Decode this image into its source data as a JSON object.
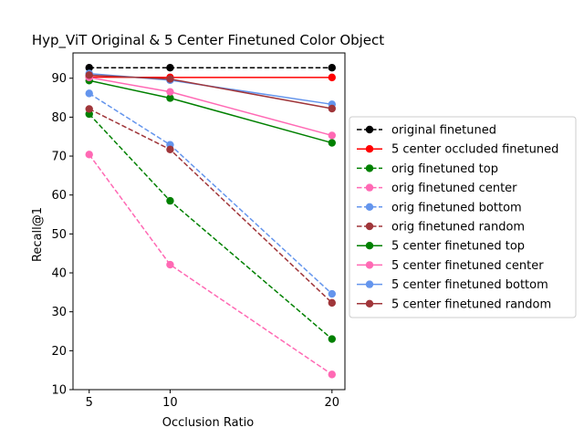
{
  "chart_data": {
    "type": "line",
    "title": "Hyp_ViT Original & 5 Center Finetuned Color Object",
    "xlabel": "Occlusion Ratio",
    "ylabel": "Recall@1",
    "x": [
      5,
      10,
      20
    ],
    "xlim": [
      4,
      20.8
    ],
    "ylim": [
      10,
      96.5
    ],
    "xticks": [
      "5",
      "10",
      "20"
    ],
    "yticks": [
      10,
      20,
      30,
      40,
      50,
      60,
      70,
      80,
      90
    ],
    "grid": false,
    "legend_position": "right",
    "series": [
      {
        "name": "original finetuned",
        "values": [
          92.7,
          92.7,
          92.7
        ],
        "color": "#000000",
        "dashed": true
      },
      {
        "name": "5 center occluded finetuned",
        "values": [
          90.3,
          90.2,
          90.2
        ],
        "color": "#ff0000",
        "dashed": false
      },
      {
        "name": "orig finetuned top",
        "values": [
          80.8,
          58.5,
          23.0
        ],
        "color": "#008000",
        "dashed": true
      },
      {
        "name": "orig finetuned center",
        "values": [
          70.4,
          42.1,
          13.9
        ],
        "color": "#ff69b4",
        "dashed": true
      },
      {
        "name": "orig finetuned bottom",
        "values": [
          86.1,
          72.9,
          34.6
        ],
        "color": "#6495ed",
        "dashed": true
      },
      {
        "name": "orig finetuned random",
        "values": [
          82.1,
          71.7,
          32.3
        ],
        "color": "#a0363a",
        "dashed": true
      },
      {
        "name": "5 center finetuned top",
        "values": [
          89.4,
          84.9,
          73.4
        ],
        "color": "#008000",
        "dashed": false
      },
      {
        "name": "5 center finetuned center",
        "values": [
          90.2,
          86.5,
          75.3
        ],
        "color": "#ff69b4",
        "dashed": false
      },
      {
        "name": "5 center finetuned bottom",
        "values": [
          91.2,
          89.5,
          83.3
        ],
        "color": "#6495ed",
        "dashed": false
      },
      {
        "name": "5 center finetuned random",
        "values": [
          90.8,
          89.8,
          82.2
        ],
        "color": "#a0363a",
        "dashed": false
      }
    ]
  }
}
